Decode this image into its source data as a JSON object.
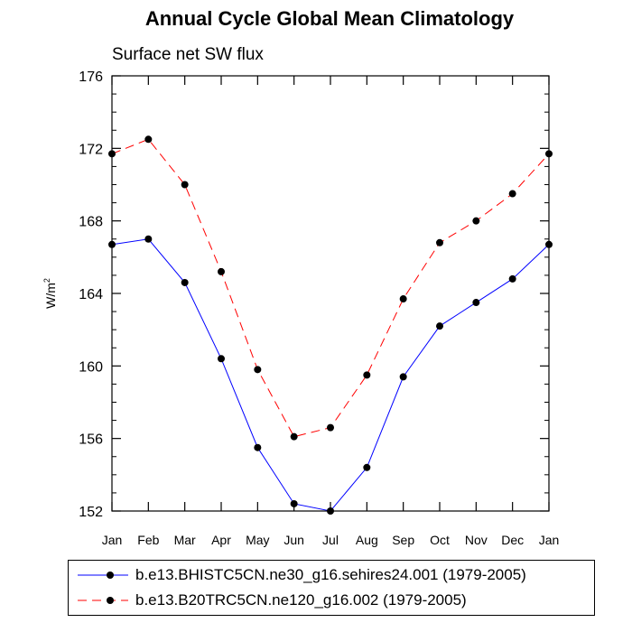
{
  "chart_data": {
    "type": "line",
    "title": "Annual Cycle Global Mean Climatology",
    "subtitle": "Surface net SW flux",
    "ylabel_base": "W/m",
    "ylabel_sup": "2",
    "xlabel": "",
    "categories": [
      "Jan",
      "Feb",
      "Mar",
      "Apr",
      "May",
      "Jun",
      "Jul",
      "Aug",
      "Sep",
      "Oct",
      "Nov",
      "Dec",
      "Jan"
    ],
    "ylim": [
      152,
      176
    ],
    "yticks": [
      152,
      156,
      160,
      164,
      168,
      172,
      176
    ],
    "ytick_labels": [
      "152",
      "156",
      "160",
      "164",
      "168",
      "172",
      "176"
    ],
    "yminor_step": 1,
    "grid": false,
    "legend_position": "bottom",
    "series": [
      {
        "name": "b.e13.BHISTC5CN.ne30_g16.sehires24.001 (1979-2005)",
        "color": "#0000ff",
        "dash": "solid",
        "values": [
          166.7,
          167.0,
          164.6,
          160.4,
          155.5,
          152.4,
          152.0,
          154.4,
          159.4,
          162.2,
          163.5,
          164.8,
          166.7
        ]
      },
      {
        "name": "b.e13.B20TRC5CN.ne120_g16.002 (1979-2005)",
        "color": "#ff0000",
        "dash": "dashed",
        "values": [
          171.7,
          172.5,
          170.0,
          165.2,
          159.8,
          156.1,
          156.6,
          159.5,
          163.7,
          166.8,
          168.0,
          169.5,
          171.7
        ]
      }
    ]
  }
}
